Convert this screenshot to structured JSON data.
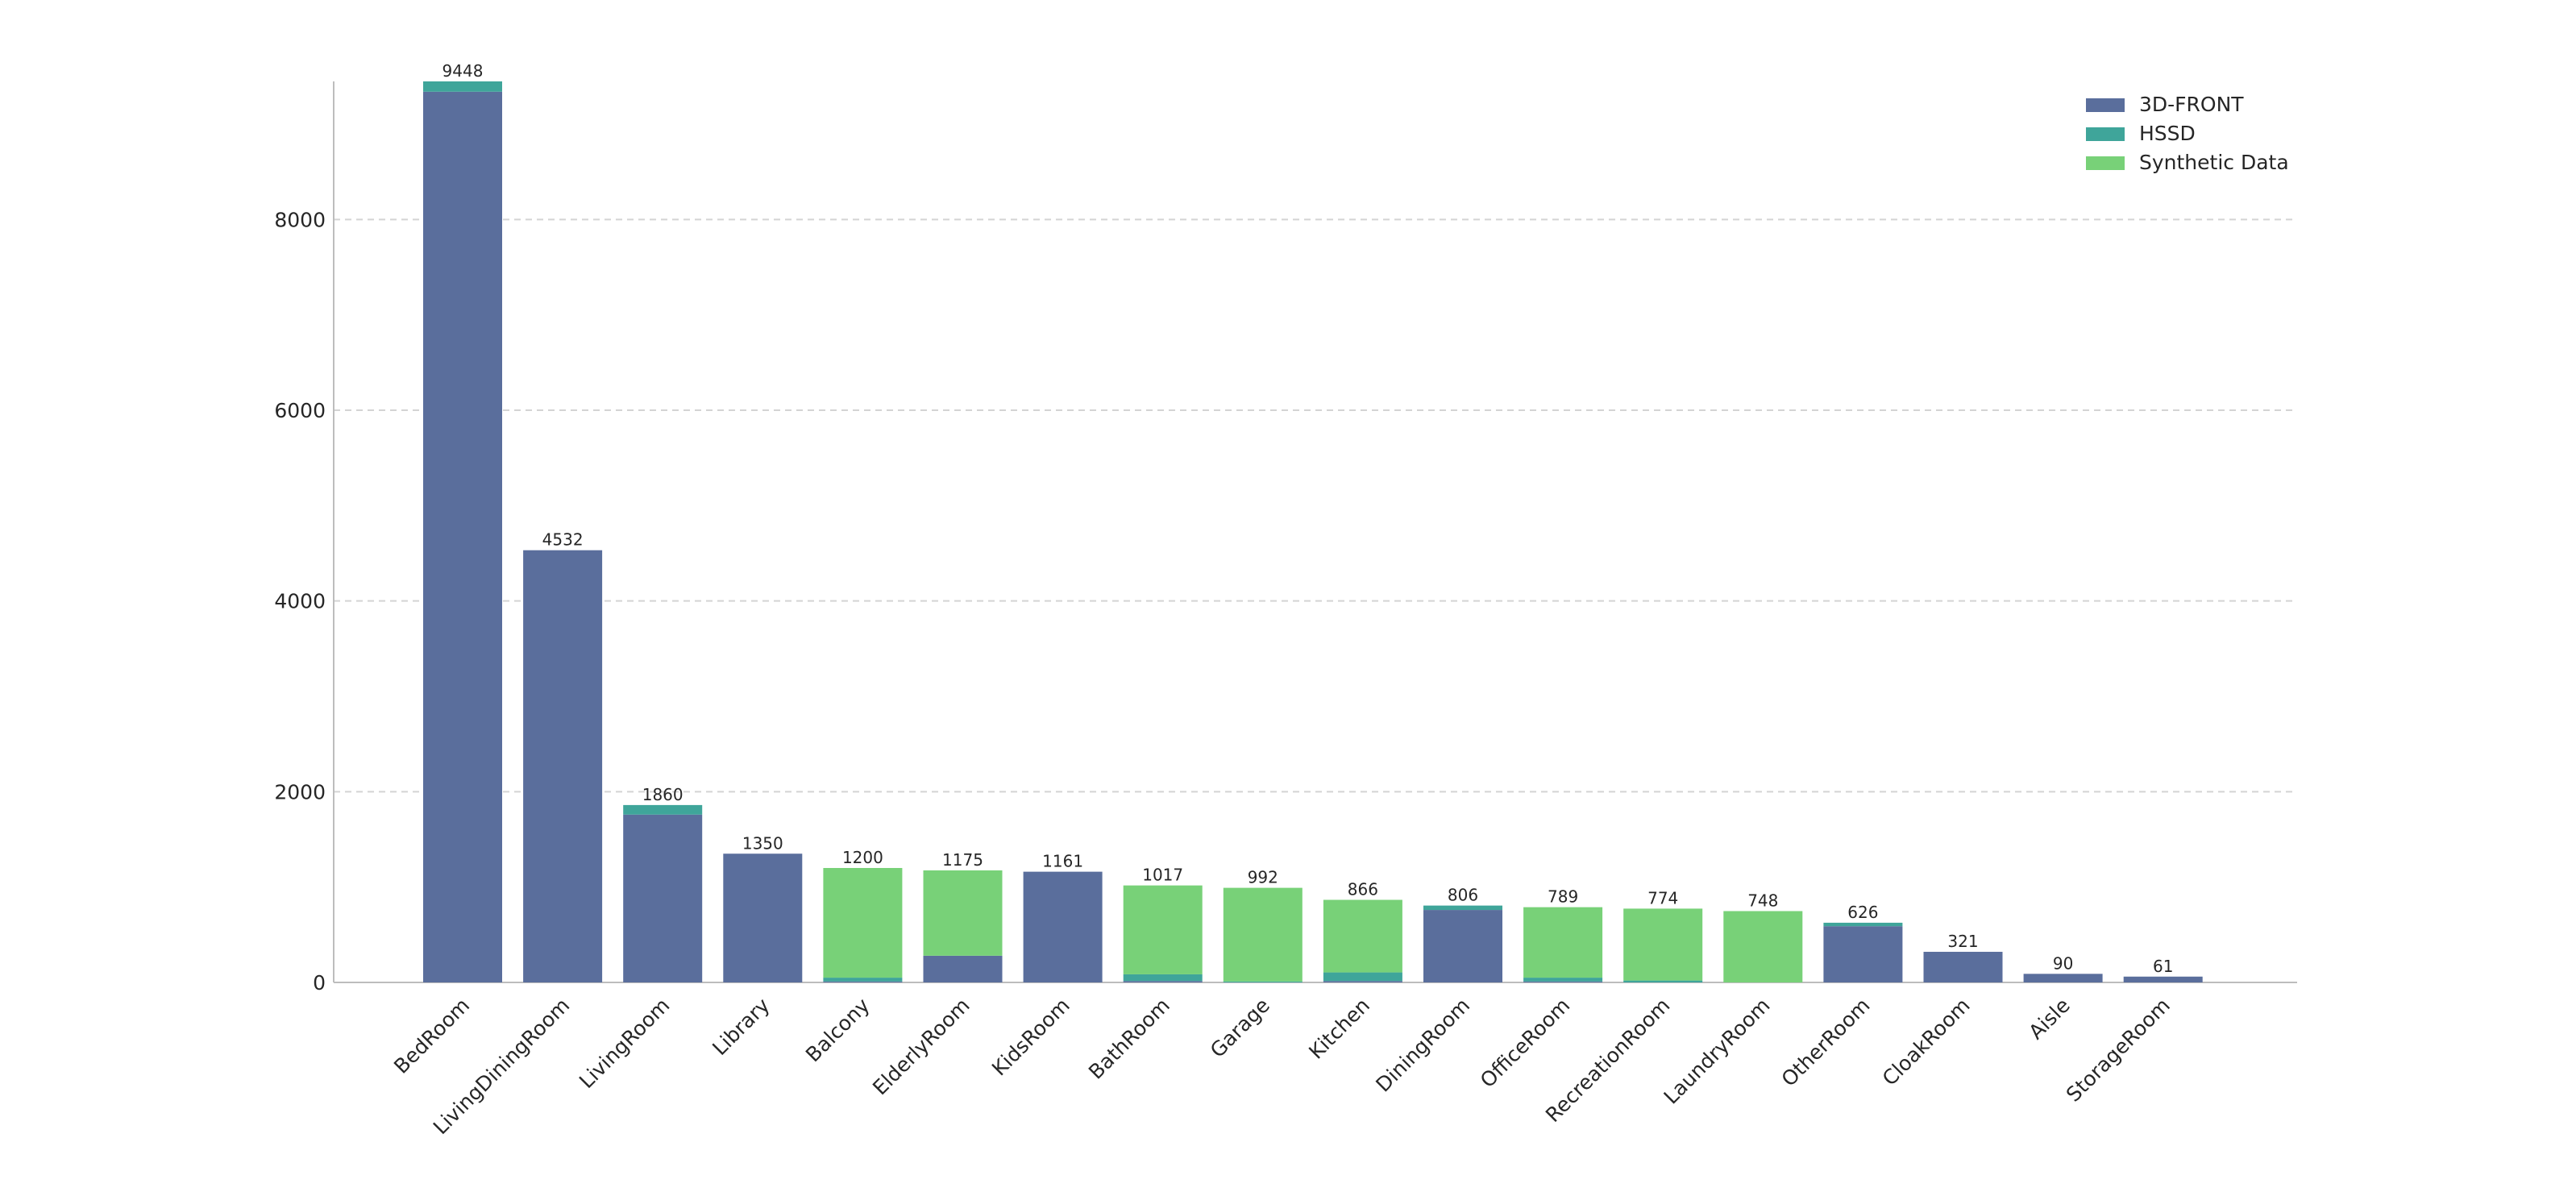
{
  "chart_data": {
    "type": "bar",
    "stacked": true,
    "categories": [
      "BedRoom",
      "LivingDiningRoom",
      "LivingRoom",
      "Library",
      "Balcony",
      "ElderlyRoom",
      "KidsRoom",
      "BathRoom",
      "Garage",
      "Kitchen",
      "DiningRoom",
      "OfficeRoom",
      "RecreationRoom",
      "LaundryRoom",
      "OtherRoom",
      "CloakRoom",
      "Aisle",
      "StorageRoom"
    ],
    "series": [
      {
        "name": "3D-FRONT",
        "color": "#5a6e9c",
        "values": [
          9340,
          4532,
          1760,
          1350,
          10,
          280,
          1161,
          15,
          0,
          15,
          760,
          10,
          0,
          0,
          590,
          321,
          90,
          61
        ]
      },
      {
        "name": "HSSD",
        "color": "#3fa59a",
        "values": [
          108,
          0,
          100,
          0,
          40,
          0,
          0,
          70,
          10,
          90,
          46,
          40,
          20,
          0,
          36,
          0,
          0,
          0
        ]
      },
      {
        "name": "Synthetic Data",
        "color": "#78d178",
        "values": [
          0,
          0,
          0,
          0,
          1150,
          895,
          0,
          932,
          982,
          761,
          0,
          739,
          754,
          748,
          0,
          0,
          0,
          0
        ]
      }
    ],
    "totals": [
      9448,
      4532,
      1860,
      1350,
      1200,
      1175,
      1161,
      1017,
      992,
      866,
      806,
      789,
      774,
      748,
      626,
      321,
      90,
      61
    ],
    "ylim": [
      0,
      9448
    ],
    "yticks": [
      0,
      2000,
      4000,
      6000,
      8000
    ],
    "xlabel": "",
    "ylabel": "",
    "title": "",
    "grid": "y-dashed",
    "legend_position": "top-right"
  }
}
